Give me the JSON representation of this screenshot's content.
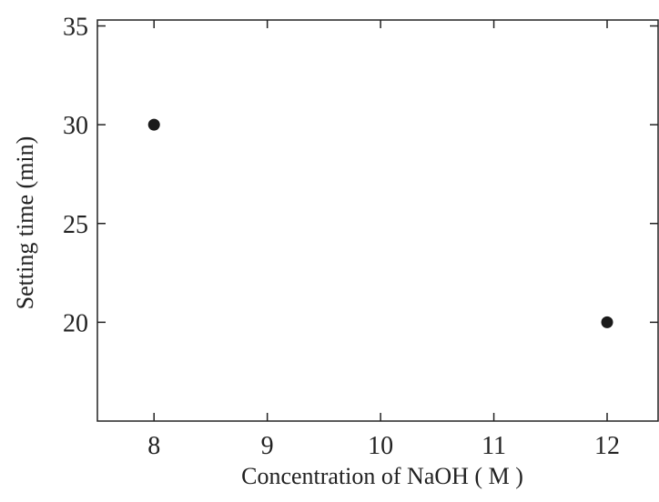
{
  "chart_data": {
    "type": "scatter",
    "x_label": "Concentration of NaOH ( M )",
    "y_label": "Setting time (min)",
    "x": [
      8,
      12
    ],
    "values": [
      30,
      20
    ],
    "color": "#1a1a1a",
    "xlim": [
      7.5,
      12.45
    ],
    "ylim": [
      15,
      35.3
    ],
    "xticks": [
      8,
      9,
      10,
      11,
      12
    ],
    "yticks": [
      20,
      25,
      30,
      35
    ]
  }
}
